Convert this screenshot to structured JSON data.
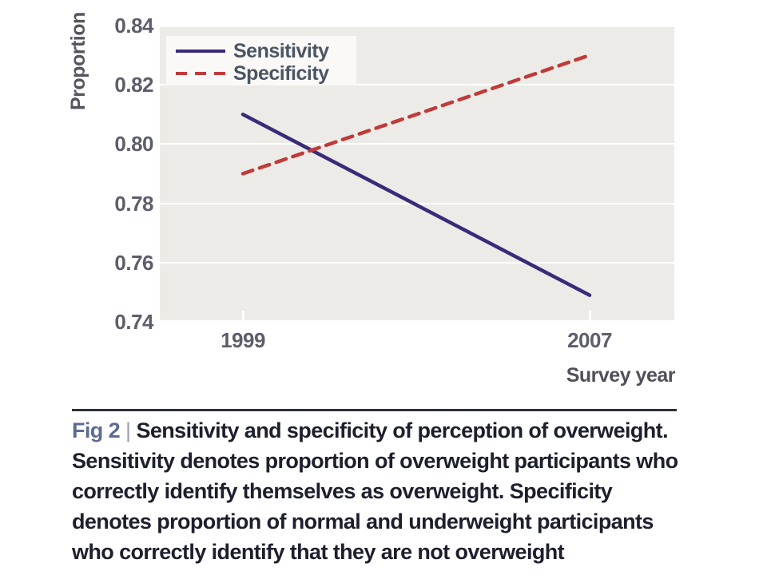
{
  "chart": {
    "y_axis": {
      "title": "Proportion",
      "ticks": [
        "0.84",
        "0.82",
        "0.80",
        "0.78",
        "0.76",
        "0.74"
      ]
    },
    "x_axis": {
      "title": "Survey year",
      "ticks": [
        "1999",
        "2007"
      ]
    },
    "legend": [
      {
        "label": "Sensitivity",
        "style": "solid",
        "color": "#3b2a7a"
      },
      {
        "label": "Specificity",
        "style": "dashed",
        "color": "#c03a3a"
      }
    ],
    "colors": {
      "plot_background": "#edebe7",
      "gridline": "#ffffff",
      "sensitivity": "#3b2a7a",
      "specificity": "#c03a3a"
    }
  },
  "chart_data": {
    "type": "line",
    "x": [
      1999,
      2007
    ],
    "series": [
      {
        "name": "Sensitivity",
        "values": [
          0.81,
          0.749
        ],
        "style": "solid",
        "color": "#3b2a7a"
      },
      {
        "name": "Specificity",
        "values": [
          0.79,
          0.83
        ],
        "style": "dashed",
        "color": "#c03a3a"
      }
    ],
    "title": "",
    "xlabel": "Survey year",
    "ylabel": "Proportion",
    "ylim": [
      0.74,
      0.84
    ],
    "ytick_step": 0.02,
    "legend_position": "top-left",
    "grid": "horizontal-white-on-gray"
  },
  "caption": {
    "fig_label": "Fig 2",
    "divider": "|",
    "line1_rest": "Sensitivity and specificity of perception of overweight.",
    "lines": [
      "Sensitivity denotes proportion of overweight participants who",
      "correctly identify themselves as overweight. Specificity",
      "denotes proportion of normal and underweight participants",
      "who correctly identify that they are not overweight"
    ]
  }
}
